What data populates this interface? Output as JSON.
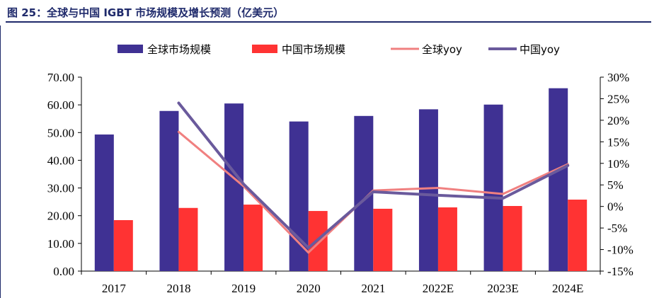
{
  "title": "图 25：全球与中国 IGBT 市场规模及增长预测（亿美元）",
  "chart_data": {
    "type": "bar",
    "categories": [
      "2017",
      "2018",
      "2019",
      "2020",
      "2021",
      "2022E",
      "2023E",
      "2024E"
    ],
    "series": [
      {
        "name": "全球市场规模",
        "kind": "bar",
        "axis": "left",
        "color": "#3f3193",
        "values": [
          49.3,
          57.8,
          60.5,
          54.0,
          56.0,
          58.4,
          60.1,
          66.0
        ]
      },
      {
        "name": "中国市场规模",
        "kind": "bar",
        "axis": "left",
        "color": "#ff3333",
        "values": [
          18.4,
          22.8,
          24.0,
          21.7,
          22.5,
          23.0,
          23.5,
          25.8
        ]
      },
      {
        "name": "全球yoy",
        "kind": "line",
        "axis": "right",
        "color": "#f08080",
        "values": [
          null,
          17.3,
          4.7,
          -10.7,
          3.7,
          4.3,
          2.9,
          9.8
        ]
      },
      {
        "name": "中国yoy",
        "kind": "line",
        "axis": "right",
        "color": "#6a5a9c",
        "values": [
          null,
          24.0,
          5.2,
          -9.6,
          3.4,
          2.6,
          1.9,
          9.5
        ]
      }
    ],
    "y_left": {
      "lim": [
        0,
        70
      ],
      "ticks": [
        "0.00",
        "10.00",
        "20.00",
        "30.00",
        "40.00",
        "50.00",
        "60.00",
        "70.00"
      ]
    },
    "y_right": {
      "lim": [
        -15,
        30
      ],
      "ticks": [
        "-15%",
        "-10%",
        "-5%",
        "0%",
        "5%",
        "10%",
        "15%",
        "20%",
        "25%",
        "30%"
      ]
    },
    "legend": {
      "placement": "top"
    },
    "grid": false
  }
}
